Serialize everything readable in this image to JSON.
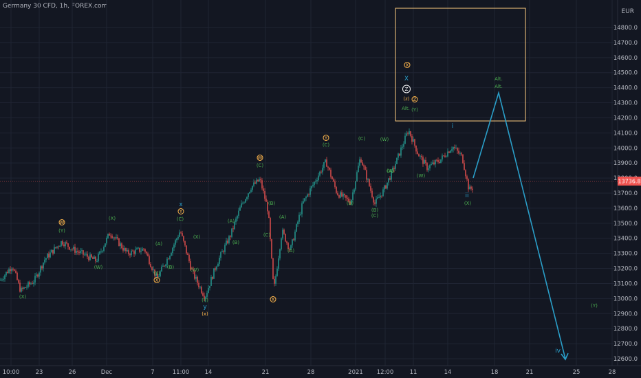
{
  "symbol": "Germany 30 CFD, 1h, FOREX.com",
  "currency": "EUR",
  "colors": {
    "background": "#131722",
    "grid": "#1f2433",
    "up": "#26a69a",
    "down": "#ef5350",
    "wave_green": "#4caf50",
    "wave_orange": "#ffb74d",
    "projection": "#2a9fc9",
    "box": "#ffcc80",
    "price_badge": "#ef5350",
    "axis_text": "#b2b5be"
  },
  "price_axis": {
    "ticks": [
      "14800.0",
      "14700.0",
      "14600.0",
      "14500.0",
      "14400.0",
      "14300.0",
      "14200.0",
      "14100.0",
      "14000.0",
      "13900.0",
      "13800.0",
      "13700.0",
      "13600.0",
      "13500.0",
      "13400.0",
      "13300.0",
      "13200.0",
      "13100.0",
      "13000.0",
      "12900.0",
      "12800.0",
      "12700.0",
      "12600.0"
    ],
    "current_price": "13736.8"
  },
  "time_axis": {
    "ticks": [
      "10:00",
      "23",
      "26",
      "Dec",
      "7",
      "11:00",
      "14",
      "21",
      "28",
      "2021",
      "12:00",
      "11",
      "14",
      "18",
      "21",
      "25",
      "28"
    ]
  },
  "wave_labels": [
    {
      "text": "(X)",
      "color": "green"
    },
    {
      "text": "W",
      "color": "orange",
      "circle": true
    },
    {
      "text": "(Y)",
      "color": "green"
    },
    {
      "text": "(W)",
      "color": "green"
    },
    {
      "text": "(X)",
      "color": "green"
    },
    {
      "text": "(A)",
      "color": "green"
    },
    {
      "text": "(B)",
      "color": "green"
    },
    {
      "text": "(Y)",
      "color": "green"
    },
    {
      "text": "X",
      "color": "orange",
      "circle": true
    },
    {
      "text": "x",
      "color": "blue"
    },
    {
      "text": "Y",
      "color": "orange",
      "circle": true
    },
    {
      "text": "(C)",
      "color": "green"
    },
    {
      "text": "(X)",
      "color": "green"
    },
    {
      "text": "(W)",
      "color": "green"
    },
    {
      "text": "(Y)",
      "color": "green"
    },
    {
      "text": "y",
      "color": "blue"
    },
    {
      "text": "(x)",
      "color": "orange"
    },
    {
      "text": "(A)",
      "color": "green"
    },
    {
      "text": "(B)",
      "color": "green"
    },
    {
      "text": "(C)",
      "color": "green"
    },
    {
      "text": "W",
      "color": "orange",
      "circle": true
    },
    {
      "text": "(C)",
      "color": "green"
    },
    {
      "text": "(A)",
      "color": "green"
    },
    {
      "text": "(B)",
      "color": "green"
    },
    {
      "text": "(A)",
      "color": "green"
    },
    {
      "text": "(B)",
      "color": "green"
    },
    {
      "text": "(C)",
      "color": "green"
    },
    {
      "text": "X",
      "color": "orange",
      "circle": true
    },
    {
      "text": "Y",
      "color": "orange",
      "circle": true
    },
    {
      "text": "(C)",
      "color": "green"
    },
    {
      "text": "(B)",
      "color": "green"
    },
    {
      "text": "(W)",
      "color": "green"
    },
    {
      "text": "(A)",
      "color": "green"
    },
    {
      "text": "(X)",
      "color": "green"
    },
    {
      "text": "(C)",
      "color": "green"
    },
    {
      "text": "X",
      "color": "orange",
      "circle": true
    },
    {
      "text": "X",
      "color": "blue"
    },
    {
      "text": "Z",
      "color": "white",
      "circle": true
    },
    {
      "text": "(z)",
      "color": "orange"
    },
    {
      "text": "Z",
      "color": "orange",
      "circle": true
    },
    {
      "text": "Alt.",
      "color": "green"
    },
    {
      "text": "(Y)",
      "color": "green"
    },
    {
      "text": "(W)",
      "color": "green"
    },
    {
      "text": "i",
      "color": "blue"
    },
    {
      "text": "ii",
      "color": "blue"
    },
    {
      "text": "(X)",
      "color": "green"
    },
    {
      "text": "Alt.",
      "color": "green"
    },
    {
      "text": "Alt.",
      "color": "green"
    },
    {
      "text": "(Y)",
      "color": "green"
    },
    {
      "text": "iv",
      "color": "blue"
    },
    {
      "text": "iii",
      "color": "blue"
    }
  ]
}
